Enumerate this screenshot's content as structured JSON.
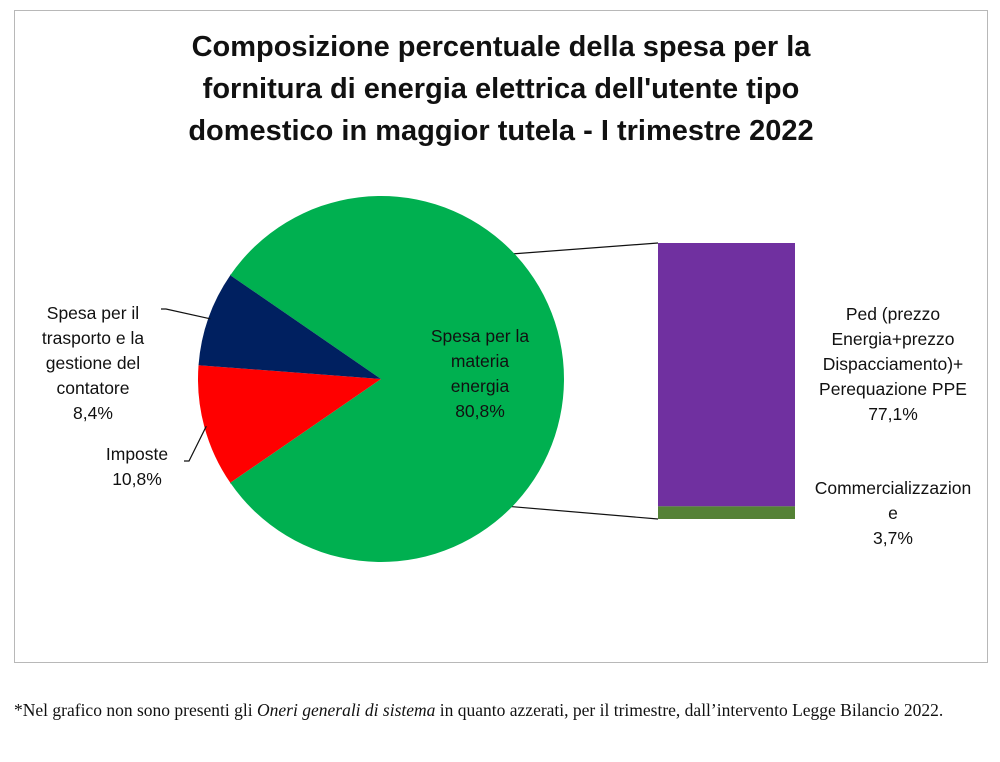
{
  "chart_data": {
    "type": "pie",
    "subtype": "pie-of-bar",
    "title_lines": [
      "Composizione percentuale della spesa per la",
      "fornitura di energia elettrica dell'utente tipo",
      "domestico in maggior tutela - I trimestre 2022"
    ],
    "pie": {
      "slices": [
        {
          "label_lines": [
            "Spesa per la",
            "materia",
            "energia"
          ],
          "value_label": "80,8%",
          "value": 80.8,
          "color": "#00b050"
        },
        {
          "label_lines": [
            "Imposte"
          ],
          "value_label": "10,8%",
          "value": 10.8,
          "color": "#ff0000"
        },
        {
          "label_lines": [
            "Spesa per il",
            "trasporto e la",
            "gestione del",
            "contatore"
          ],
          "value_label": "8,4%",
          "value": 8.4,
          "color": "#002060"
        }
      ]
    },
    "bar": {
      "segments": [
        {
          "label_lines": [
            "Ped (prezzo",
            "Energia+prezzo",
            "Dispacciamento)+",
            "Perequazione PPE"
          ],
          "value_label": "77,1%",
          "value": 77.1,
          "color": "#7030a0"
        },
        {
          "label_lines": [
            "Commercializzazion",
            "e"
          ],
          "value_label": "3,7%",
          "value": 3.7,
          "color": "#548235"
        }
      ]
    }
  },
  "footnote": {
    "prefix": "*Nel grafico non sono presenti gli ",
    "emphasis": "Oneri generali di sistema",
    "suffix": " in quanto azzerati, per il trimestre, dall’intervento Legge Bilancio 2022."
  }
}
